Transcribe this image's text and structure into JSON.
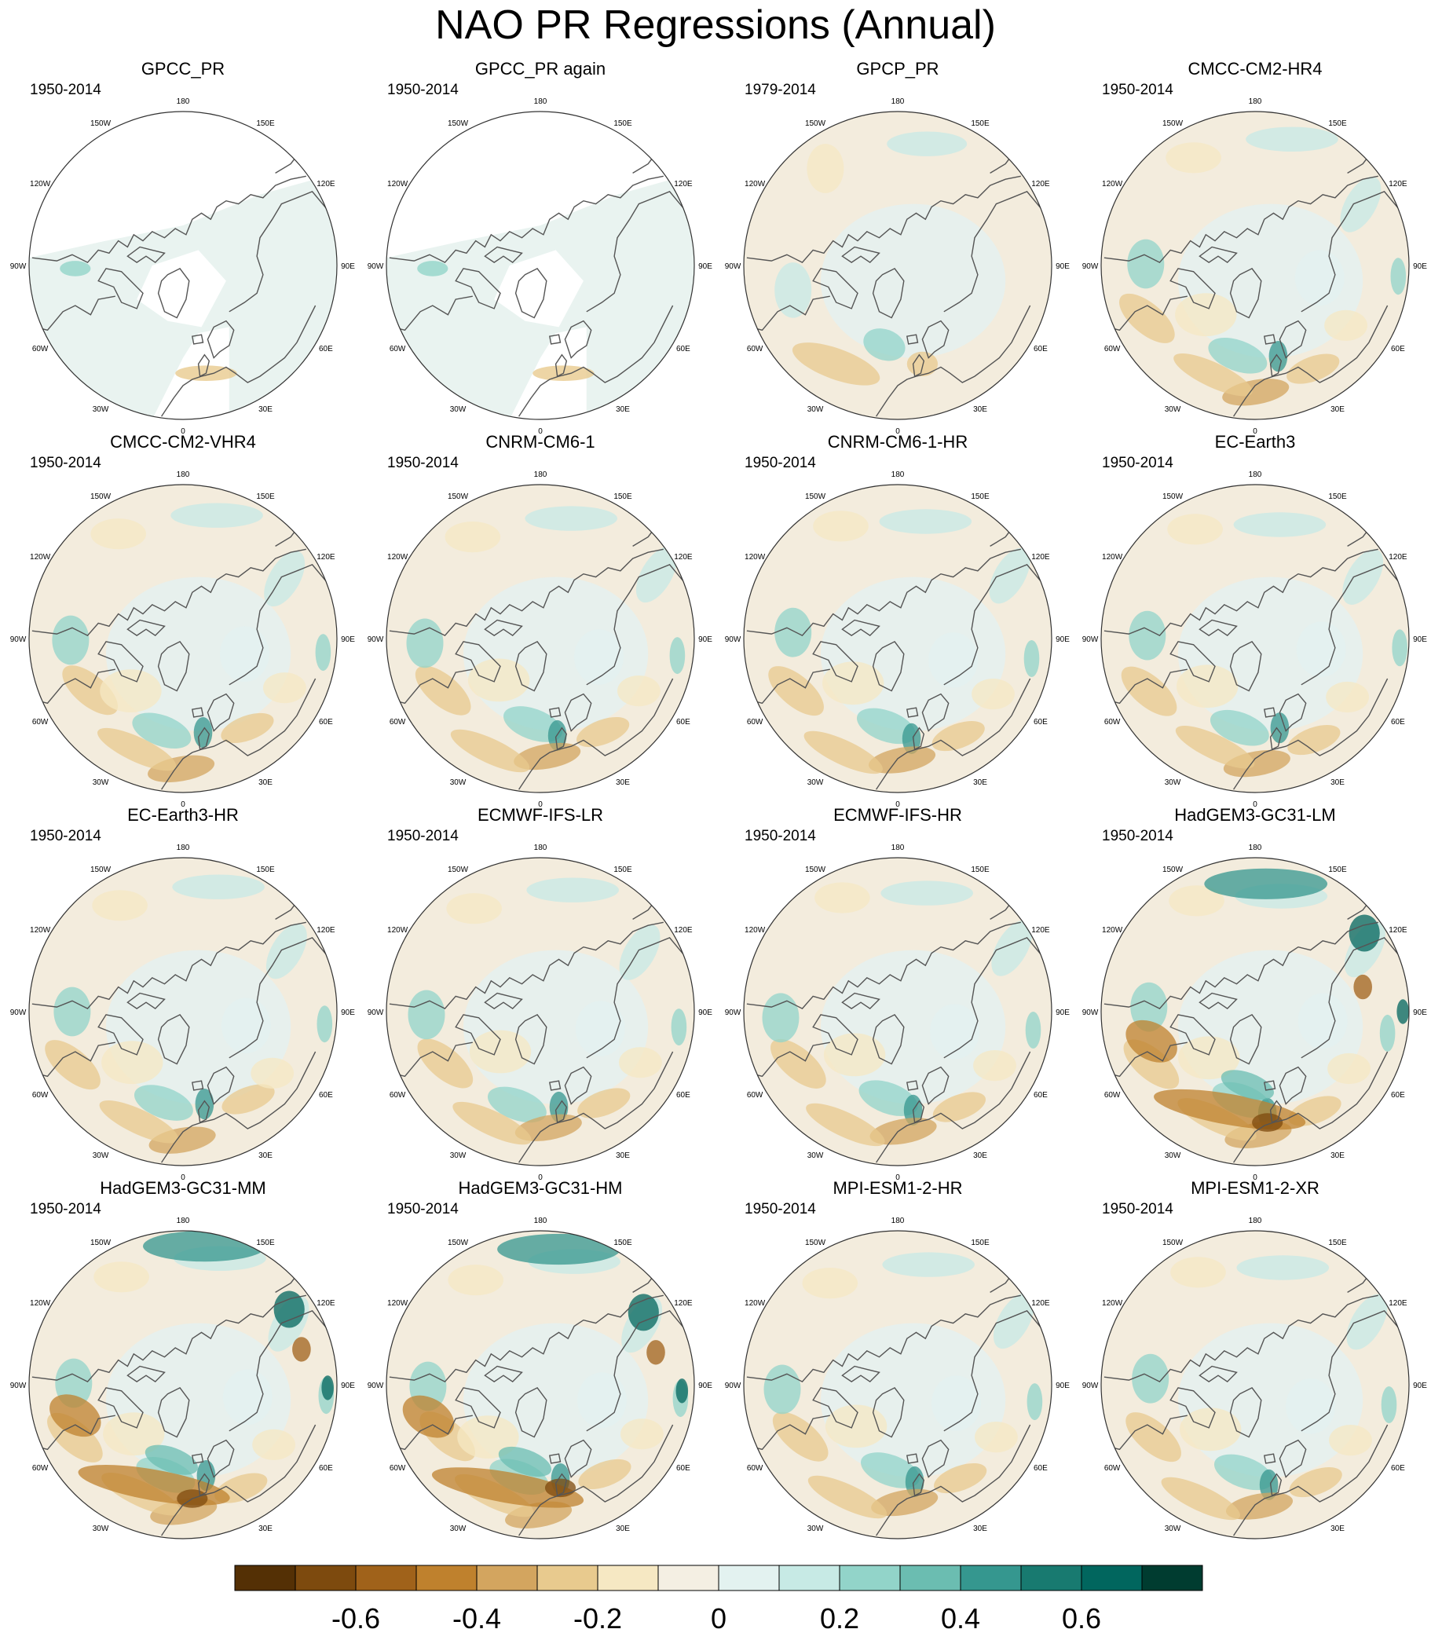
{
  "title": "NAO PR Regressions (Annual)",
  "panels": [
    {
      "name": "GPCC_PR",
      "period": "1950-2014",
      "style": "gpcc"
    },
    {
      "name": "GPCC_PR again",
      "period": "1950-2014",
      "style": "gpcc"
    },
    {
      "name": "GPCP_PR",
      "period": "1979-2014",
      "style": "gpcp"
    },
    {
      "name": "CMCC-CM2-HR4",
      "period": "1950-2014",
      "style": "model"
    },
    {
      "name": "CMCC-CM2-VHR4",
      "period": "1950-2014",
      "style": "model"
    },
    {
      "name": "CNRM-CM6-1",
      "period": "1950-2014",
      "style": "model"
    },
    {
      "name": "CNRM-CM6-1-HR",
      "period": "1950-2014",
      "style": "model"
    },
    {
      "name": "EC-Earth3",
      "period": "1950-2014",
      "style": "model"
    },
    {
      "name": "EC-Earth3-HR",
      "period": "1950-2014",
      "style": "model"
    },
    {
      "name": "ECMWF-IFS-LR",
      "period": "1950-2014",
      "style": "model"
    },
    {
      "name": "ECMWF-IFS-HR",
      "period": "1950-2014",
      "style": "model"
    },
    {
      "name": "HadGEM3-GC31-LM",
      "period": "1950-2014",
      "style": "strong"
    },
    {
      "name": "HadGEM3-GC31-MM",
      "period": "1950-2014",
      "style": "strong"
    },
    {
      "name": "HadGEM3-GC31-HM",
      "period": "1950-2014",
      "style": "strong"
    },
    {
      "name": "MPI-ESM1-2-HR",
      "period": "1950-2014",
      "style": "model"
    },
    {
      "name": "MPI-ESM1-2-XR",
      "period": "1950-2014",
      "style": "model"
    }
  ],
  "longitude_labels": [
    "180",
    "150E",
    "120E",
    "90E",
    "60E",
    "30E",
    "0",
    "30W",
    "60W",
    "90W",
    "120W",
    "150W"
  ],
  "colorbar": {
    "colors": [
      "#543005",
      "#7d4a0e",
      "#a0621a",
      "#bf812d",
      "#d3a55f",
      "#e8ca8e",
      "#f6e8c3",
      "#f4efe3",
      "#e3f2f0",
      "#c7eae5",
      "#92d4c9",
      "#6bbdb1",
      "#35978f",
      "#187a70",
      "#01665e",
      "#003c30"
    ],
    "tick_labels": [
      "-0.6",
      "-0.4",
      "-0.2",
      "0",
      "0.2",
      "0.4",
      "0.6"
    ]
  },
  "chart_data": {
    "type": "heatmap",
    "title": "NAO PR Regressions (Annual)",
    "projection": "polar stereographic, Northern Hemisphere",
    "panel_titles": [
      "GPCC_PR",
      "GPCC_PR again",
      "GPCP_PR",
      "CMCC-CM2-HR4",
      "CMCC-CM2-VHR4",
      "CNRM-CM6-1",
      "CNRM-CM6-1-HR",
      "EC-Earth3",
      "EC-Earth3-HR",
      "ECMWF-IFS-LR",
      "ECMWF-IFS-HR",
      "HadGEM3-GC31-LM",
      "HadGEM3-GC31-MM",
      "HadGEM3-GC31-HM",
      "MPI-ESM1-2-HR",
      "MPI-ESM1-2-XR"
    ],
    "periods": [
      "1950-2014",
      "1950-2014",
      "1979-2014",
      "1950-2014",
      "1950-2014",
      "1950-2014",
      "1950-2014",
      "1950-2014",
      "1950-2014",
      "1950-2014",
      "1950-2014",
      "1950-2014",
      "1950-2014",
      "1950-2014",
      "1950-2014",
      "1950-2014"
    ],
    "colorbar_ticks": [
      -0.6,
      -0.4,
      -0.2,
      0,
      0.2,
      0.4,
      0.6
    ],
    "colorbar_range": [
      -0.8,
      0.8
    ],
    "colorbar_levels": 16,
    "grid": false
  }
}
